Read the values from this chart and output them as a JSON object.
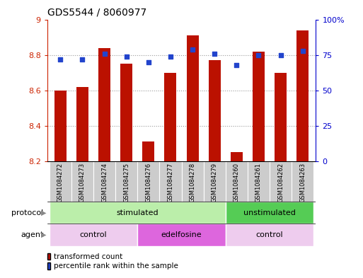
{
  "title": "GDS5544 / 8060977",
  "samples": [
    "GSM1084272",
    "GSM1084273",
    "GSM1084274",
    "GSM1084275",
    "GSM1084276",
    "GSM1084277",
    "GSM1084278",
    "GSM1084279",
    "GSM1084260",
    "GSM1084261",
    "GSM1084262",
    "GSM1084263"
  ],
  "bar_values": [
    8.6,
    8.62,
    8.84,
    8.75,
    8.31,
    8.7,
    8.91,
    8.77,
    8.25,
    8.82,
    8.7,
    8.94
  ],
  "dot_values": [
    72,
    72,
    76,
    74,
    70,
    74,
    79,
    76,
    68,
    75,
    75,
    78
  ],
  "bar_bottom": 8.2,
  "ylim_left": [
    8.2,
    9.0
  ],
  "ylim_right": [
    0,
    100
  ],
  "yticks_left": [
    8.2,
    8.4,
    8.6,
    8.8,
    9.0
  ],
  "ytick_labels_left": [
    "8.2",
    "8.4",
    "8.6",
    "8.8",
    "9"
  ],
  "yticks_right": [
    0,
    25,
    50,
    75,
    100
  ],
  "ytick_labels_right": [
    "0",
    "25",
    "50",
    "75",
    "100%"
  ],
  "bar_color": "#BB1100",
  "dot_color": "#2244CC",
  "protocol_groups": [
    {
      "label": "stimulated",
      "start": 0,
      "end": 8,
      "color": "#BBEEAA"
    },
    {
      "label": "unstimulated",
      "start": 8,
      "end": 12,
      "color": "#55CC55"
    }
  ],
  "agent_groups": [
    {
      "label": "control",
      "start": 0,
      "end": 4,
      "color": "#EECCEE"
    },
    {
      "label": "edelfosine",
      "start": 4,
      "end": 8,
      "color": "#DD66DD"
    },
    {
      "label": "control",
      "start": 8,
      "end": 12,
      "color": "#EECCEE"
    }
  ],
  "protocol_label": "protocol",
  "agent_label": "agent",
  "legend_bar_label": "transformed count",
  "legend_dot_label": "percentile rank within the sample",
  "tick_color_left": "#CC2200",
  "tick_color_right": "#0000CC",
  "sample_bg_color": "#CCCCCC",
  "bar_width": 0.55
}
